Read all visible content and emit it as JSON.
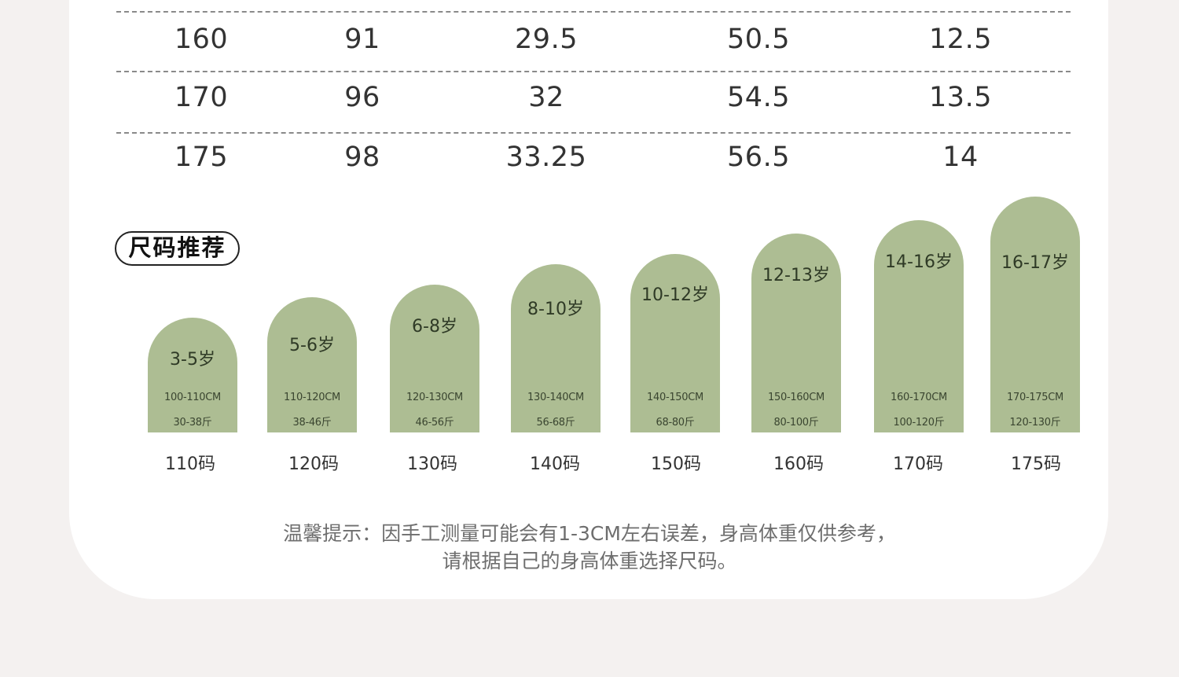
{
  "table": {
    "rows": [
      [
        "160",
        "91",
        "29.5",
        "50.5",
        "12.5"
      ],
      [
        "170",
        "96",
        "32",
        "54.5",
        "13.5"
      ],
      [
        "175",
        "98",
        "33.25",
        "56.5",
        "14"
      ]
    ]
  },
  "section_title": "尺码推荐",
  "recommendations": [
    {
      "age": "3-5岁",
      "height": "100-110CM",
      "weight": "30-38斤",
      "size": "110码"
    },
    {
      "age": "5-6岁",
      "height": "110-120CM",
      "weight": "38-46斤",
      "size": "120码"
    },
    {
      "age": "6-8岁",
      "height": "120-130CM",
      "weight": "46-56斤",
      "size": "130码"
    },
    {
      "age": "8-10岁",
      "height": "130-140CM",
      "weight": "56-68斤",
      "size": "140码"
    },
    {
      "age": "10-12岁",
      "height": "140-150CM",
      "weight": "68-80斤",
      "size": "150码"
    },
    {
      "age": "12-13岁",
      "height": "150-160CM",
      "weight": "80-100斤",
      "size": "160码"
    },
    {
      "age": "14-16岁",
      "height": "160-170CM",
      "weight": "100-120斤",
      "size": "170码"
    },
    {
      "age": "16-17岁",
      "height": "170-175CM",
      "weight": "120-130斤",
      "size": "175码"
    }
  ],
  "tip": {
    "line1": "温馨提示：因手工测量可能会有1-3CM左右误差，身高体重仅供参考，",
    "line2": "请根据自己的身高体重选择尺码。"
  },
  "colors": {
    "arch": "#adbd93",
    "page_bg": "#f4f1f0",
    "card_bg": "#ffffff"
  }
}
